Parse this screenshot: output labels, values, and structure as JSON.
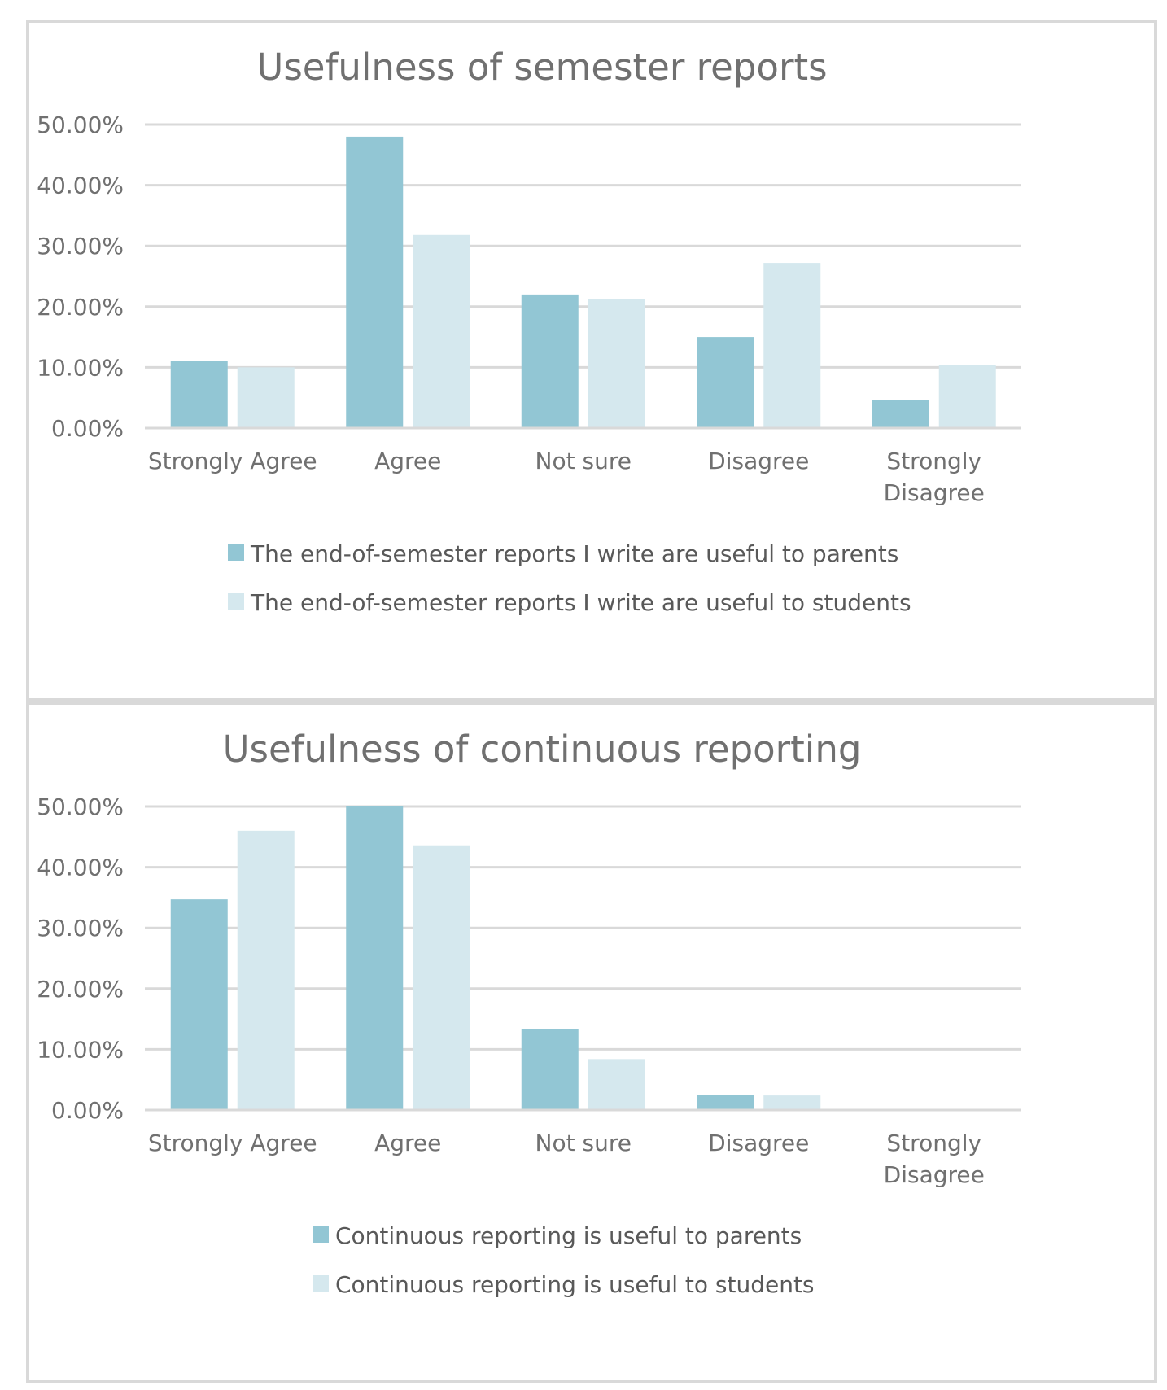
{
  "chart_data": [
    {
      "type": "bar",
      "title": "Usefulness of semester reports",
      "categories": [
        "Strongly Agree",
        "Agree",
        "Not sure",
        "Disagree",
        "Strongly Disagree"
      ],
      "category_lines": [
        [
          "Strongly Agree"
        ],
        [
          "Agree"
        ],
        [
          "Not sure"
        ],
        [
          "Disagree"
        ],
        [
          "Strongly",
          "Disagree"
        ]
      ],
      "series": [
        {
          "name": "The end-of-semester reports I write are useful  to parents",
          "color": "#92c6d4",
          "values": [
            11.0,
            48.0,
            22.0,
            15.0,
            4.6
          ]
        },
        {
          "name": "The end-of-semester reports I write are useful  to students",
          "color": "#d5e8ee",
          "values": [
            10.0,
            31.8,
            21.3,
            27.2,
            10.4
          ]
        }
      ],
      "y_ticks": [
        "0.00%",
        "10.00%",
        "20.00%",
        "30.00%",
        "40.00%",
        "50.00%"
      ],
      "ylim": [
        0,
        50
      ],
      "grid": true,
      "legend_position": "bottom"
    },
    {
      "type": "bar",
      "title": "Usefulness of continuous reporting",
      "categories": [
        "Strongly Agree",
        "Agree",
        "Not sure",
        "Disagree",
        "Strongly Disagree"
      ],
      "category_lines": [
        [
          "Strongly Agree"
        ],
        [
          "Agree"
        ],
        [
          "Not sure"
        ],
        [
          "Disagree"
        ],
        [
          "Strongly",
          "Disagree"
        ]
      ],
      "series": [
        {
          "name": "Continuous reporting is useful  to parents",
          "color": "#92c6d4",
          "values": [
            34.7,
            50.0,
            13.3,
            2.5,
            0
          ]
        },
        {
          "name": "Continuous reporting is useful  to students",
          "color": "#d5e8ee",
          "values": [
            46.0,
            43.6,
            8.4,
            2.4,
            0
          ]
        }
      ],
      "y_ticks": [
        "0.00%",
        "10.00%",
        "20.00%",
        "30.00%",
        "40.00%",
        "50.00%"
      ],
      "ylim": [
        0,
        50
      ],
      "grid": true,
      "legend_position": "bottom"
    }
  ]
}
